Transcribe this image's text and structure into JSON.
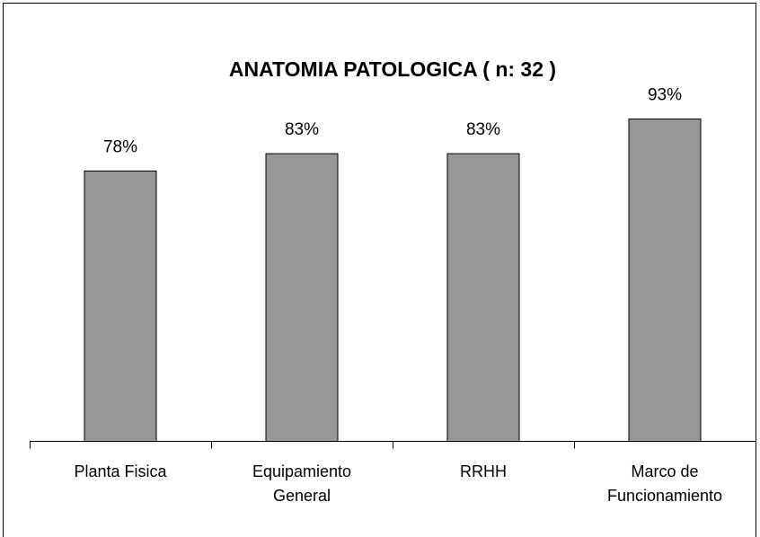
{
  "chart_data": {
    "type": "bar",
    "title": "ANATOMIA PATOLOGICA ( n: 32 )",
    "categories": [
      "Planta Fisica",
      "Equipamiento General",
      "RRHH",
      "Marco de Funcionamiento"
    ],
    "values": [
      78,
      83,
      83,
      93
    ],
    "value_labels": [
      "78%",
      "83%",
      "83%",
      "93%"
    ],
    "color": "#969696"
  }
}
